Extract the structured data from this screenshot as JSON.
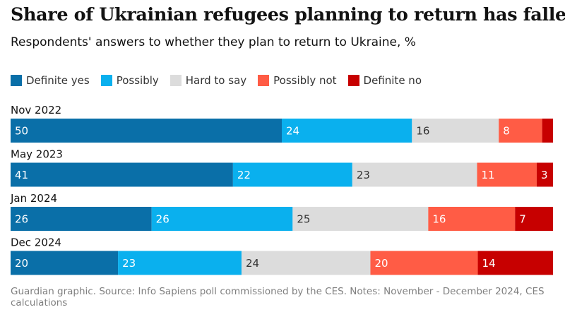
{
  "title": "Share of Ukrainian refugees planning to return has fallen",
  "subtitle": "Respondents' answers to whether they plan to return to Ukraine, %",
  "footer": "Guardian graphic. Source: Info Sapiens poll commissioned by the CES. Notes: November - December 2024, CES calculations",
  "colors": {
    "definite_yes": "#0a6fa8",
    "possibly": "#0ab0ee",
    "hard_to_say": "#dcdcdc",
    "possibly_not": "#ff5c45",
    "definite_no": "#c70000"
  },
  "chart_data": {
    "type": "bar",
    "orientation": "horizontal",
    "stacked": true,
    "units": "%",
    "categories": [
      "Nov 2022",
      "May 2023",
      "Jan 2024",
      "Dec 2024"
    ],
    "series": [
      {
        "name": "Definite yes",
        "color": "#0a6fa8",
        "label_color": "#ffffff",
        "values": [
          50,
          41,
          26,
          20
        ]
      },
      {
        "name": "Possibly",
        "color": "#0ab0ee",
        "label_color": "#ffffff",
        "values": [
          24,
          22,
          26,
          23
        ]
      },
      {
        "name": "Hard to say",
        "color": "#dcdcdc",
        "label_color": "#333333",
        "values": [
          16,
          23,
          25,
          24
        ]
      },
      {
        "name": "Possibly not",
        "color": "#ff5c45",
        "label_color": "#ffffff",
        "values": [
          8,
          11,
          16,
          20
        ]
      },
      {
        "name": "Definite no",
        "color": "#c70000",
        "label_color": "#ffffff",
        "values": [
          2,
          3,
          7,
          14
        ]
      }
    ],
    "labels": [
      [
        "50",
        "24",
        "16",
        "8",
        ""
      ],
      [
        "41",
        "22",
        "23",
        "11",
        "3"
      ],
      [
        "26",
        "26",
        "25",
        "16",
        "7"
      ],
      [
        "20",
        "23",
        "24",
        "20",
        "14"
      ]
    ],
    "legend_position": "top-left",
    "grid": false
  }
}
